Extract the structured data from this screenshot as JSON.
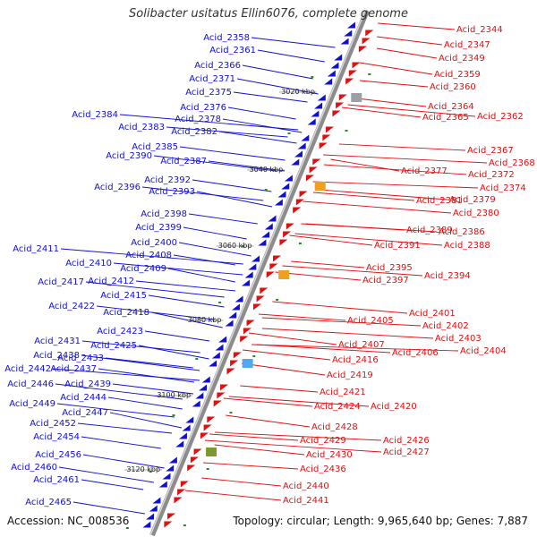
{
  "title": "Solibacter usitatus Ellin6076, complete genome",
  "footer": {
    "accession": "Accession: NC_008536",
    "topology": "Topology: circular; Length: 9,965,640 bp; Genes: 7,887"
  },
  "colors": {
    "left_strand": "#1010d0",
    "right_strand": "#e01010",
    "backbone": "#888888"
  },
  "kbp_marks": [
    "3020 kbp",
    "3040 kbp",
    "3060 kbp",
    "3080 kbp",
    "3100 kbp",
    "3120 kbp"
  ],
  "left_genes": [
    "Acid_2358",
    "Acid_2361",
    "Acid_2366",
    "Acid_2371",
    "Acid_2375",
    "Acid_2376",
    "Acid_2378",
    "Acid_2384",
    "Acid_2383",
    "Acid_2382",
    "Acid_2385",
    "Acid_2390",
    "Acid_2387",
    "Acid_2392",
    "Acid_2396",
    "Acid_2393",
    "Acid_2398",
    "Acid_2399",
    "Acid_2400",
    "Acid_2411",
    "Acid_2408",
    "Acid_2410",
    "Acid_2409",
    "Acid_2417",
    "Acid_2412",
    "Acid_2415",
    "Acid_2422",
    "Acid_2418",
    "Acid_2423",
    "Acid_2431",
    "Acid_2425",
    "Acid_2438",
    "Acid_2433",
    "Acid_2442",
    "Acid_2437",
    "Acid_2446",
    "Acid_2439",
    "Acid_2444",
    "Acid_2449",
    "Acid_2447",
    "Acid_2452",
    "Acid_2454",
    "Acid_2456",
    "Acid_2460",
    "Acid_2461",
    "Acid_2465"
  ],
  "right_genes": [
    "Acid_2344",
    "Acid_2347",
    "Acid_2349",
    "Acid_2359",
    "Acid_2360",
    "Acid_2364",
    "Acid_2365",
    "Acid_2362",
    "Acid_2367",
    "Acid_2368",
    "Acid_2372",
    "Acid_2377",
    "Acid_2374",
    "Acid_2381",
    "Acid_2379",
    "Acid_2380",
    "Acid_2389",
    "Acid_2386",
    "Acid_2391",
    "Acid_2388",
    "Acid_2395",
    "Acid_2397",
    "Acid_2394",
    "Acid_2401",
    "Acid_2405",
    "Acid_2402",
    "Acid_2403",
    "Acid_2407",
    "Acid_2404",
    "Acid_2406",
    "Acid_2416",
    "Acid_2419",
    "Acid_2421",
    "Acid_2424",
    "Acid_2420",
    "Acid_2428",
    "Acid_2429",
    "Acid_2426",
    "Acid_2430",
    "Acid_2427",
    "Acid_2436",
    "Acid_2440",
    "Acid_2441"
  ]
}
